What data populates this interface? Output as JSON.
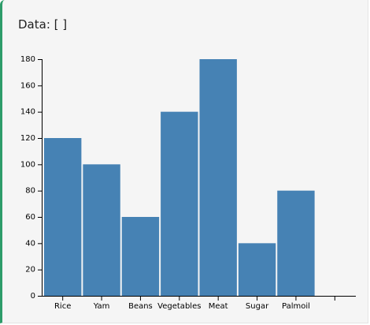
{
  "title": "Data: [ ]",
  "chart_data": {
    "type": "bar",
    "categories": [
      "Rice",
      "Yam",
      "Beans",
      "Vegetables",
      "Meat",
      "Sugar",
      "Palmoil",
      null
    ],
    "values": [
      120,
      100,
      60,
      140,
      180,
      40,
      80,
      null
    ],
    "color": "#4682b4",
    "ylim": [
      0,
      180
    ],
    "yticks": [
      0,
      20,
      40,
      60,
      80,
      100,
      120,
      140,
      160,
      180
    ]
  }
}
